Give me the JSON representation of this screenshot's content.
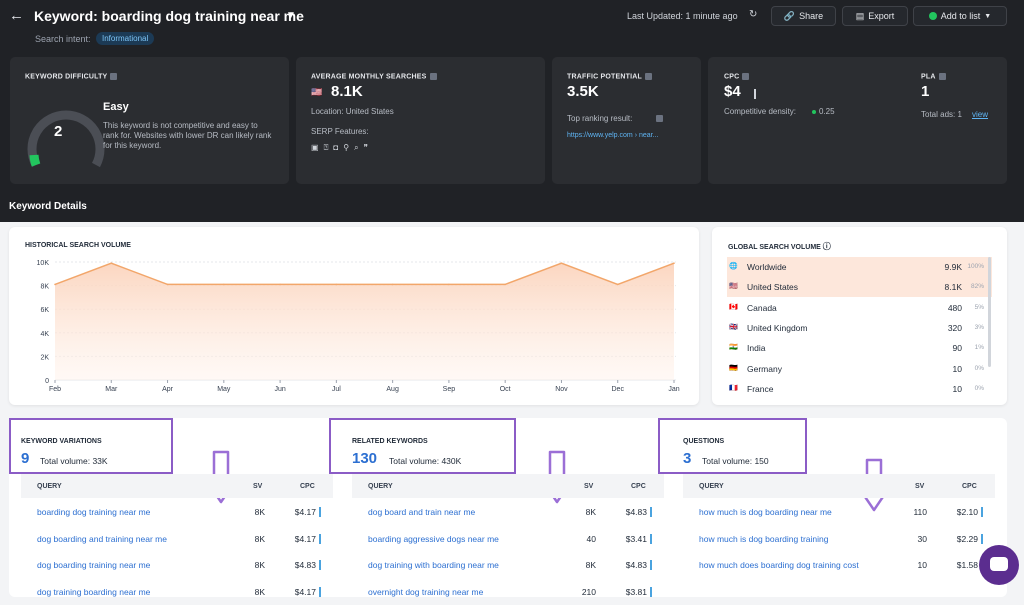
{
  "header": {
    "back_icon": "arrow-left-icon",
    "title": "Keyword: boarding dog training near me",
    "search_intent_label": "Search intent:",
    "search_intent_value": "Informational",
    "last_updated": "Last Updated: 1 minute ago",
    "share_label": "Share",
    "export_label": "Export",
    "add_to_list_label": "Add to list"
  },
  "metrics": {
    "keyword_difficulty": {
      "title": "KEYWORD DIFFICULTY",
      "value": "2",
      "level": "Easy",
      "description": "This keyword is not competitive and easy to rank for. Websites with lower DR can likely rank for this keyword.",
      "gauge_fraction": 0.02
    },
    "average_monthly_searches": {
      "title": "AVERAGE MONTHLY SEARCHES",
      "value": "8.1K",
      "location": "Location: United States",
      "serp_features_label": "SERP Features:"
    },
    "traffic_potential": {
      "title": "TRAFFIC POTENTIAL",
      "value": "3.5K",
      "top_ranking_label": "Top ranking result:",
      "top_ranking_url": "https://www.yelp.com › near..."
    },
    "cpc": {
      "title": "CPC",
      "value": "$4",
      "competitive_density": "Competitive density:",
      "density_value": "0.25"
    },
    "pla": {
      "title": "PLA",
      "value": "1",
      "total_ads_label": "Total ads: 1",
      "view_label": "view"
    }
  },
  "keyword_details_label": "Keyword Details",
  "historical": {
    "title": "HISTORICAL SEARCH VOLUME"
  },
  "chart_data": {
    "type": "area",
    "title": "HISTORICAL SEARCH VOLUME",
    "x": [
      "Feb",
      "Mar",
      "Apr",
      "May",
      "Jun",
      "Jul",
      "Aug",
      "Sep",
      "Oct",
      "Nov",
      "Dec",
      "Jan"
    ],
    "values": [
      8100,
      9900,
      8100,
      8100,
      8100,
      8100,
      8100,
      8100,
      8100,
      9900,
      8100,
      9900
    ],
    "y_ticks": [
      "0",
      "2K",
      "4K",
      "6K",
      "8K",
      "10K"
    ],
    "ylim": [
      0,
      10000
    ],
    "color": "#f2a66a",
    "grid": true
  },
  "global": {
    "title": "GLOBAL SEARCH VOLUME",
    "rows": [
      {
        "flag": "🌐",
        "name": "Worldwide",
        "value": "9.9K",
        "pct": "100%"
      },
      {
        "flag": "🇺🇸",
        "name": "United States",
        "value": "8.1K",
        "pct": "82%"
      },
      {
        "flag": "🇨🇦",
        "name": "Canada",
        "value": "480",
        "pct": "5%"
      },
      {
        "flag": "🇬🇧",
        "name": "United Kingdom",
        "value": "320",
        "pct": "3%"
      },
      {
        "flag": "🇮🇳",
        "name": "India",
        "value": "90",
        "pct": "1%"
      },
      {
        "flag": "🇩🇪",
        "name": "Germany",
        "value": "10",
        "pct": "0%"
      },
      {
        "flag": "🇫🇷",
        "name": "France",
        "value": "10",
        "pct": "0%"
      }
    ]
  },
  "panels": [
    {
      "title": "KEYWORD VARIATIONS",
      "count": "9",
      "total": "Total volume: 33K",
      "headers": {
        "query": "QUERY",
        "sv": "SV",
        "cpc": "CPC"
      },
      "rows": [
        {
          "q": "boarding dog training near me",
          "sv": "8K",
          "cpc": "$4.17"
        },
        {
          "q": "dog boarding and training near me",
          "sv": "8K",
          "cpc": "$4.17"
        },
        {
          "q": "dog boarding training near me",
          "sv": "8K",
          "cpc": "$4.83"
        },
        {
          "q": "dog training boarding near me",
          "sv": "8K",
          "cpc": "$4.17"
        }
      ]
    },
    {
      "title": "RELATED KEYWORDS",
      "count": "130",
      "total": "Total volume: 430K",
      "headers": {
        "query": "QUERY",
        "sv": "SV",
        "cpc": "CPC"
      },
      "rows": [
        {
          "q": "dog board and train near me",
          "sv": "8K",
          "cpc": "$4.83"
        },
        {
          "q": "boarding aggressive dogs near me",
          "sv": "40",
          "cpc": "$3.41"
        },
        {
          "q": "dog training with boarding near me",
          "sv": "8K",
          "cpc": "$4.83"
        },
        {
          "q": "overnight dog training near me",
          "sv": "210",
          "cpc": "$3.81"
        }
      ]
    },
    {
      "title": "QUESTIONS",
      "count": "3",
      "total": "Total volume: 150",
      "headers": {
        "query": "QUERY",
        "sv": "SV",
        "cpc": "CPC"
      },
      "rows": [
        {
          "q": "how much is dog boarding near me",
          "sv": "110",
          "cpc": "$2.10"
        },
        {
          "q": "how much is dog boarding training",
          "sv": "30",
          "cpc": "$2.29"
        },
        {
          "q": "how much does boarding dog training cost",
          "sv": "10",
          "cpc": "$1.58"
        }
      ]
    }
  ]
}
